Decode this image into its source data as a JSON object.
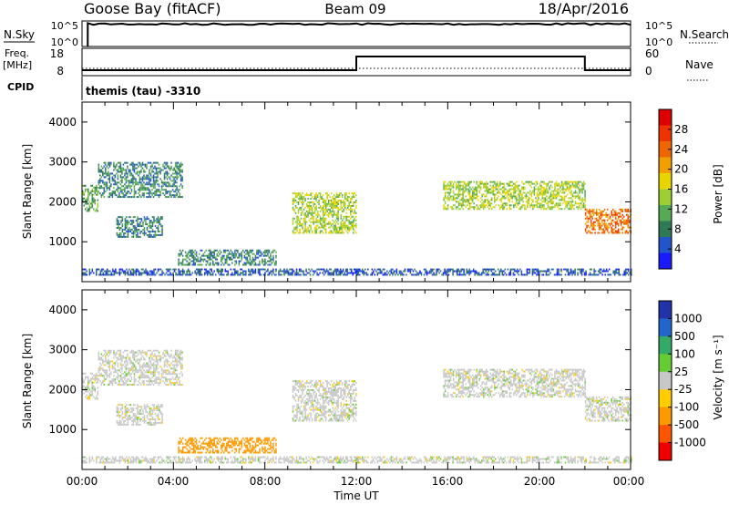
{
  "header": {
    "site": "Goose Bay (fitACF)",
    "beam": "Beam 09",
    "date": "18/Apr/2016"
  },
  "top_panels": {
    "nsky_label": "N.Sky",
    "nsky_ticks": [
      "10^5",
      "10^0"
    ],
    "nsearch_label": "N.Search",
    "nsearch_ticks": [
      "10^5",
      "10^0"
    ],
    "freq_label": "Freq.",
    "freq_unit": "[MHz]",
    "freq_ticks": [
      "18",
      "8"
    ],
    "nave_label": "Nave",
    "nave_ticks": [
      "60",
      "0"
    ],
    "cpid_label": "CPID",
    "cpid_text": "themis (tau) -3310",
    "freq_series": [
      {
        "t": 0.0,
        "v": 10
      },
      {
        "t": 12.0,
        "v": 10
      },
      {
        "t": 12.0,
        "v": 15
      },
      {
        "t": 22.0,
        "v": 15
      },
      {
        "t": 22.0,
        "v": 10
      },
      {
        "t": 24.0,
        "v": 10
      }
    ],
    "nsky_level": 0.88
  },
  "axes": {
    "ylabel": "Slant Range [km]",
    "xlabel": "Time UT",
    "x_ticks": [
      "00:00",
      "04:00",
      "08:00",
      "12:00",
      "16:00",
      "20:00",
      "00:00"
    ],
    "y_ticks": [
      "1000",
      "2000",
      "3000",
      "4000"
    ]
  },
  "colorbars": {
    "power": {
      "label": "Power [dB]",
      "ticks": [
        "4",
        "8",
        "12",
        "16",
        "20",
        "24",
        "28"
      ],
      "colors": [
        "#1a1aff",
        "#2255cc",
        "#2e7a55",
        "#55aa55",
        "#9bcf33",
        "#e8d400",
        "#f2a000",
        "#ee6600",
        "#ee3300",
        "#dd0000"
      ]
    },
    "velocity": {
      "label": "Velocity [m s⁻¹]",
      "ticks": [
        "1000",
        "500",
        "100",
        "25",
        "-25",
        "-100",
        "-500",
        "-1000"
      ],
      "colors": [
        "#2233aa",
        "#2266cc",
        "#33aa66",
        "#66cc33",
        "#c8c8c8",
        "#ffcc00",
        "#ff9900",
        "#ff5500",
        "#ee0000"
      ]
    }
  },
  "chart_data": {
    "type": "heatmap",
    "x_unit": "hours UT",
    "xlim": [
      0,
      24
    ],
    "ylim": [
      0,
      4500
    ],
    "ylabel": "Slant Range [km]",
    "xlabel": "Time UT",
    "regions": [
      {
        "t0": 0.0,
        "t1": 0.7,
        "r0": 1750,
        "r1": 2400,
        "power": 10,
        "velocity": 0
      },
      {
        "t0": 0.7,
        "t1": 4.4,
        "r0": 2100,
        "r1": 3000,
        "power": 8,
        "velocity": 0
      },
      {
        "t0": 1.5,
        "t1": 3.5,
        "r0": 1100,
        "r1": 1600,
        "power": 7,
        "velocity": 0
      },
      {
        "t0": 4.2,
        "t1": 8.5,
        "r0": 400,
        "r1": 800,
        "power": 8,
        "velocity": -300
      },
      {
        "t0": 9.2,
        "t1": 12.0,
        "r0": 1200,
        "r1": 2200,
        "power": 14,
        "velocity": 0
      },
      {
        "t0": 15.8,
        "t1": 22.0,
        "r0": 1800,
        "r1": 2500,
        "power": 14,
        "velocity": 0
      },
      {
        "t0": 22.0,
        "t1": 24.0,
        "r0": 1200,
        "r1": 1800,
        "power": 22,
        "velocity": 0
      },
      {
        "t0": 0.0,
        "t1": 24.0,
        "r0": 150,
        "r1": 300,
        "power": 5,
        "velocity": 0
      }
    ]
  }
}
